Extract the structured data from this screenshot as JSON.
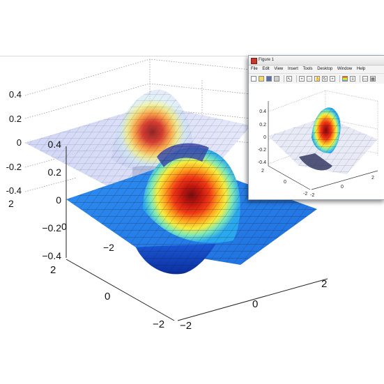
{
  "main_plot": {
    "upper_z_ticks": [
      "0.4",
      "0.2",
      "0",
      "-0.2",
      "-0.4"
    ],
    "lower_z_ticks": [
      "0.4",
      "0.2",
      "0",
      "−0.2",
      "−0.4"
    ],
    "upper_left_tick": "2",
    "y_ticks": [
      "2",
      "0",
      "−2"
    ],
    "x_ticks": [
      "−2",
      "0",
      "2"
    ],
    "upper_x_tick": "−2",
    "upper_y_tick": "0"
  },
  "figure_window": {
    "title": "Figure 1",
    "menu": [
      "File",
      "Edit",
      "View",
      "Insert",
      "Tools",
      "Desktop",
      "Window",
      "Help"
    ],
    "toolbar_icons": [
      "new-icon",
      "open-icon",
      "save-icon",
      "print-icon",
      "pointer-icon",
      "zoom-in-icon",
      "zoom-out-icon",
      "pan-icon",
      "rotate-icon",
      "datacursor-icon",
      "colorbar-icon",
      "legend-icon",
      "hide-tools-icon",
      "show-tools-icon"
    ],
    "z_ticks": [
      "0.4",
      "0.2",
      "0",
      "-0.2",
      "-0.4"
    ],
    "y_ticks": [
      "2",
      "0",
      "-2"
    ],
    "x_ticks": [
      "-2",
      "0",
      "2"
    ]
  }
}
